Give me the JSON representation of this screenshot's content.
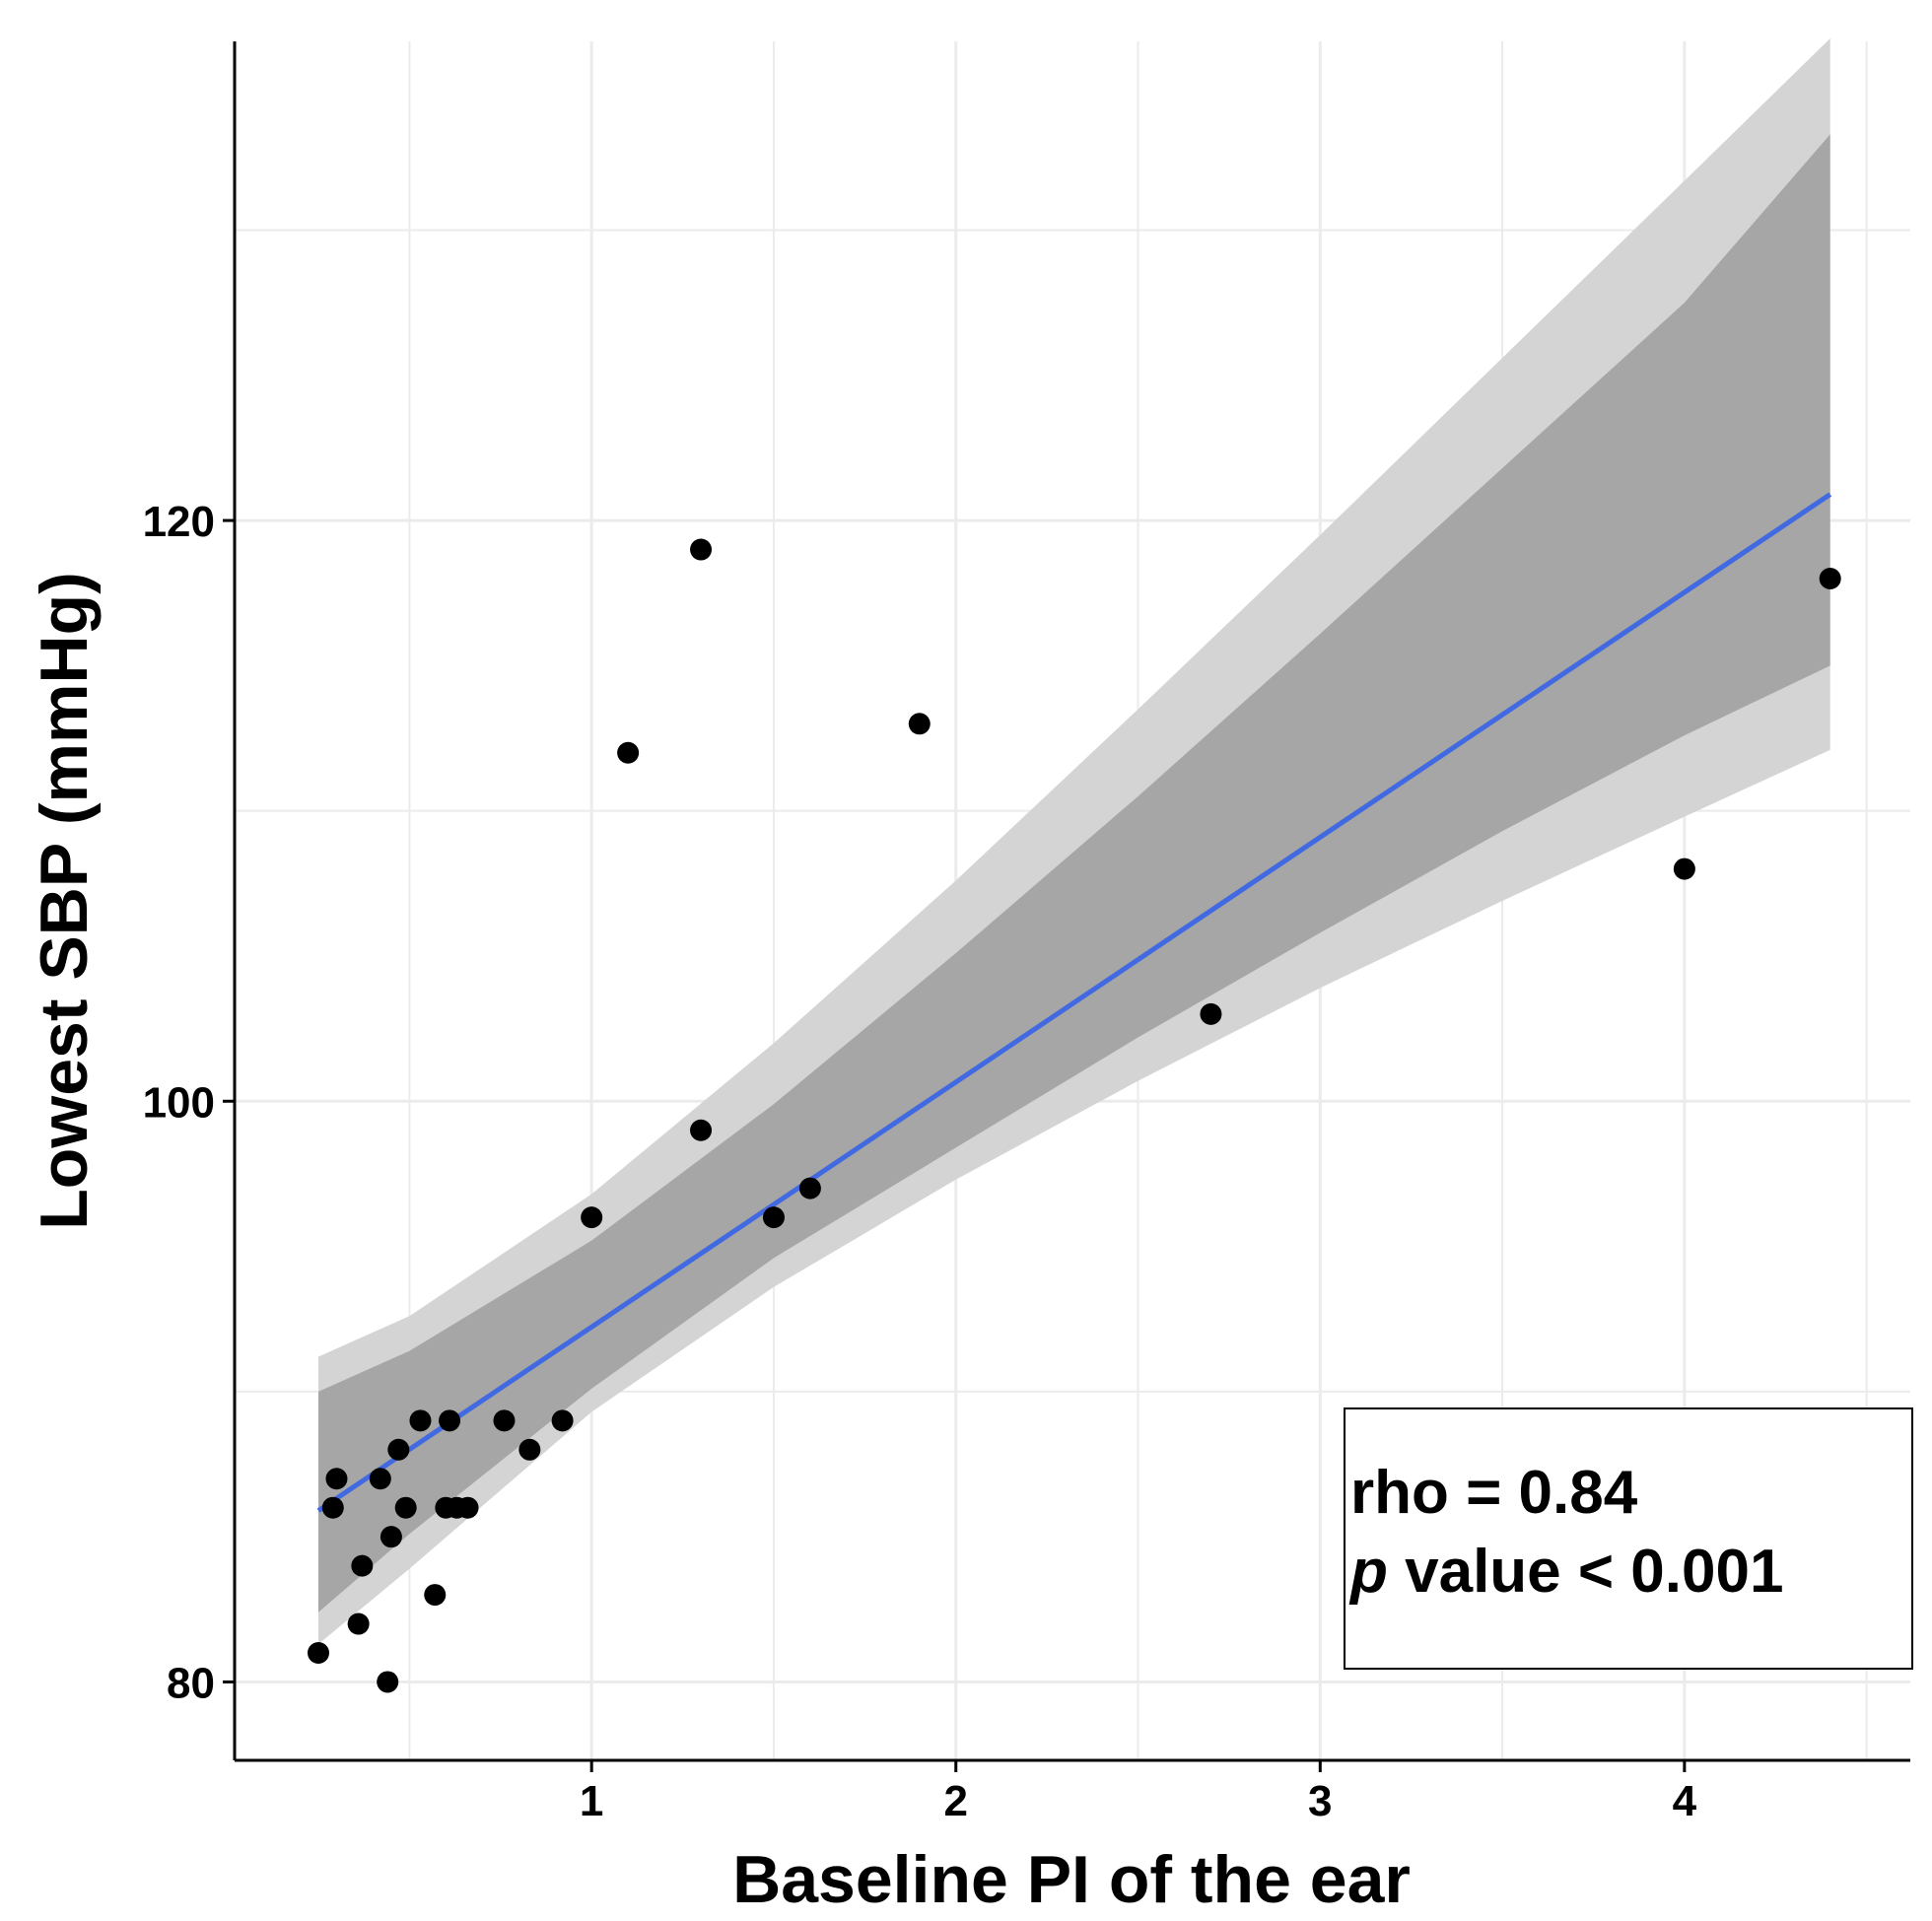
{
  "chart_data": {
    "type": "scatter",
    "title": "",
    "xlabel": "Baseline PI of the ear",
    "ylabel": "Lowest SBP (mmHg)",
    "xlim": [
      0.02,
      4.62
    ],
    "ylim": [
      77.3,
      136.5
    ],
    "x_ticks": [
      1,
      2,
      3,
      4
    ],
    "y_ticks": [
      80,
      100,
      120
    ],
    "grid": true,
    "points": [
      {
        "x": 0.25,
        "y": 81
      },
      {
        "x": 0.29,
        "y": 86
      },
      {
        "x": 0.3,
        "y": 87
      },
      {
        "x": 0.36,
        "y": 82
      },
      {
        "x": 0.37,
        "y": 84
      },
      {
        "x": 0.42,
        "y": 87
      },
      {
        "x": 0.44,
        "y": 80
      },
      {
        "x": 0.45,
        "y": 85
      },
      {
        "x": 0.47,
        "y": 88
      },
      {
        "x": 0.49,
        "y": 86
      },
      {
        "x": 0.53,
        "y": 89
      },
      {
        "x": 0.57,
        "y": 83
      },
      {
        "x": 0.6,
        "y": 86
      },
      {
        "x": 0.61,
        "y": 89
      },
      {
        "x": 0.63,
        "y": 86
      },
      {
        "x": 0.66,
        "y": 86
      },
      {
        "x": 0.76,
        "y": 89
      },
      {
        "x": 0.83,
        "y": 88
      },
      {
        "x": 0.92,
        "y": 89
      },
      {
        "x": 1.0,
        "y": 96
      },
      {
        "x": 1.1,
        "y": 112
      },
      {
        "x": 1.3,
        "y": 119
      },
      {
        "x": 1.3,
        "y": 99
      },
      {
        "x": 1.5,
        "y": 96
      },
      {
        "x": 1.6,
        "y": 97
      },
      {
        "x": 1.9,
        "y": 113
      },
      {
        "x": 2.7,
        "y": 103
      },
      {
        "x": 4.0,
        "y": 108
      },
      {
        "x": 4.4,
        "y": 118
      }
    ],
    "fit_line": {
      "color": "#4169E1",
      "x": [
        0.25,
        4.4
      ],
      "y": [
        85.9,
        120.9
      ]
    },
    "bands": [
      {
        "color": "#d4d4d4",
        "x": [
          0.25,
          0.5,
          1.0,
          1.5,
          2.0,
          2.5,
          3.0,
          3.5,
          4.0,
          4.4
        ],
        "upper": [
          91.2,
          92.6,
          96.8,
          102.0,
          107.6,
          113.5,
          119.5,
          125.6,
          131.7,
          136.6
        ],
        "lower": [
          81.3,
          83.9,
          89.3,
          93.6,
          97.3,
          100.7,
          103.9,
          106.9,
          109.8,
          112.1
        ]
      },
      {
        "color": "#a6a6a6",
        "x": [
          0.25,
          0.5,
          1.0,
          1.5,
          2.0,
          2.5,
          3.0,
          3.5,
          4.0,
          4.4
        ],
        "upper": [
          90.0,
          91.4,
          95.2,
          99.9,
          105.1,
          110.5,
          116.1,
          121.8,
          127.5,
          133.3
        ],
        "lower": [
          82.4,
          85.1,
          90.1,
          94.6,
          98.4,
          102.2,
          105.8,
          109.3,
          112.6,
          115.0
        ]
      }
    ],
    "annotations": {
      "rho": "rho = 0.84",
      "p_italic": "p",
      "p_rest": " value < 0.001"
    }
  }
}
